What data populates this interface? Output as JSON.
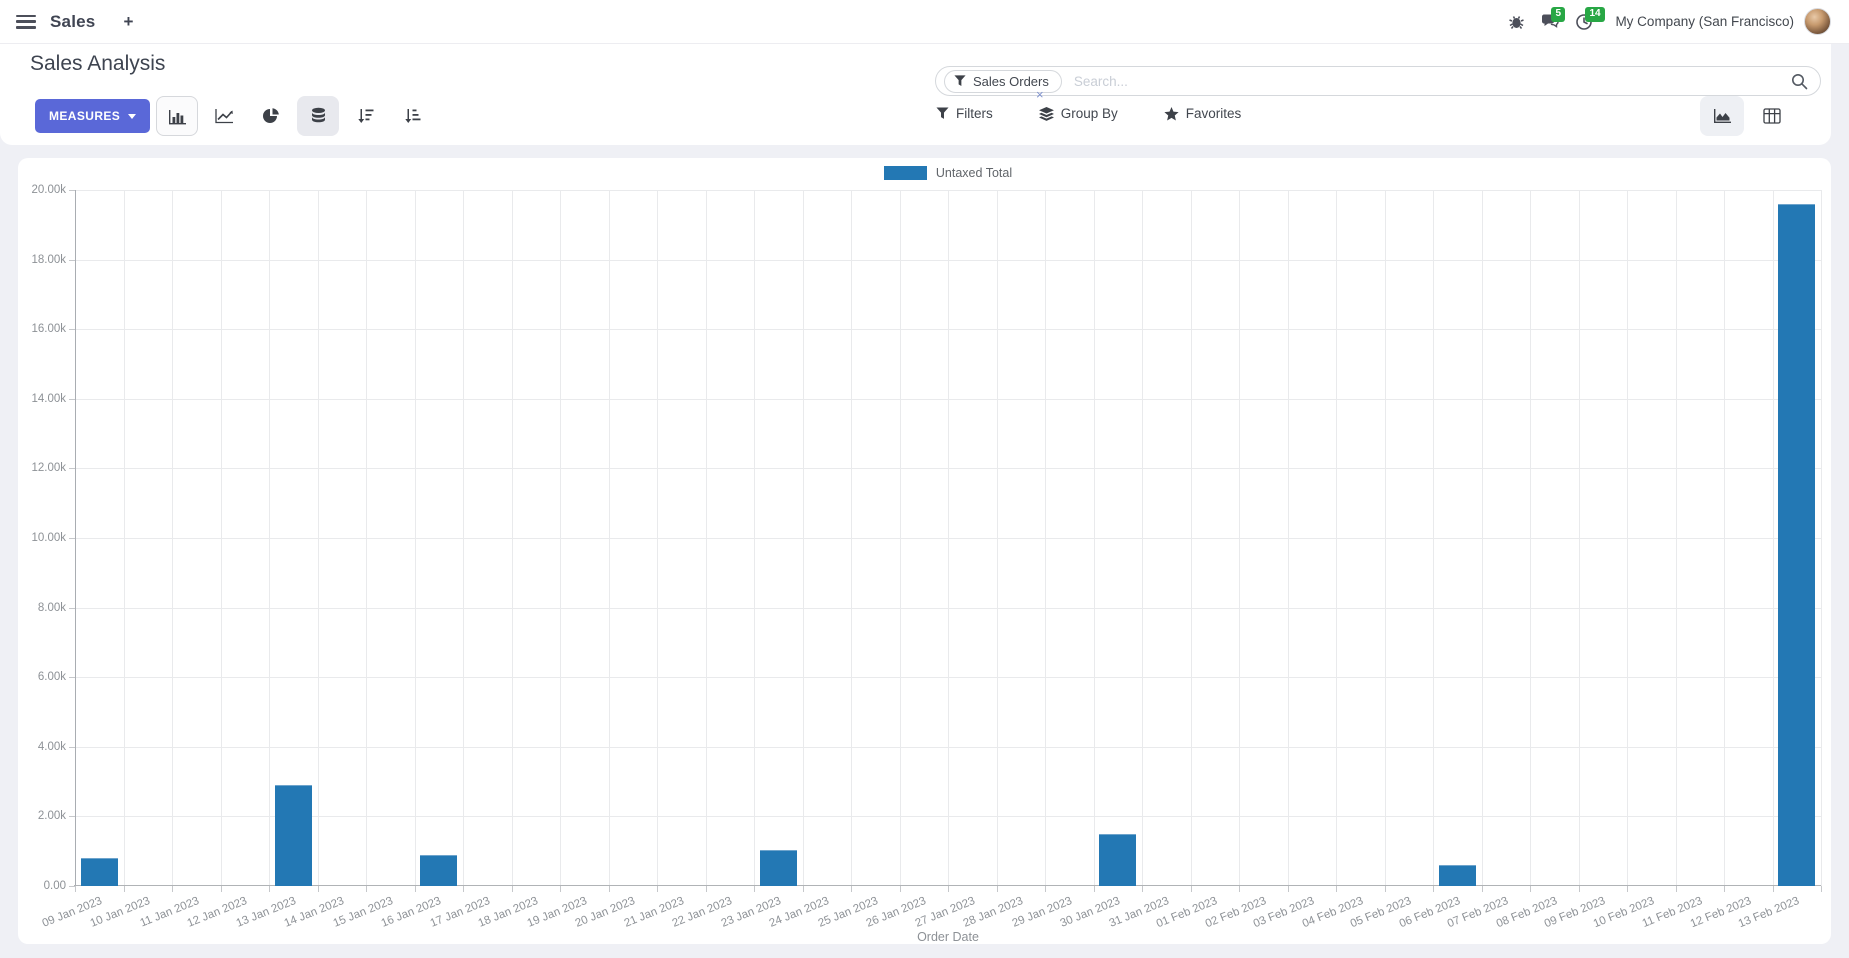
{
  "topbar": {
    "app_name": "Sales",
    "plus_label": "+",
    "chat_badge": "5",
    "activity_badge": "14",
    "company": "My Company (San Francisco)"
  },
  "control_panel": {
    "title": "Sales Analysis",
    "measures_label": "MEASURES",
    "search": {
      "facet_label": "Sales Orders",
      "facet_remove": "×",
      "placeholder": "Search..."
    },
    "filters_label": "Filters",
    "group_by_label": "Group By",
    "favorites_label": "Favorites"
  },
  "icons": {
    "menu-icon": "hamburger",
    "plus-icon": "+",
    "bug-icon": "debug bug",
    "chat-icon": "speech bubbles",
    "clock-icon": "activity clock",
    "bar-chart-icon": "bar chart (selected)",
    "line-chart-icon": "line chart",
    "pie-chart-icon": "pie chart",
    "stacked-icon": "database/stacked toggle (active)",
    "sort-desc-icon": "sort descending",
    "sort-asc-icon": "sort ascending",
    "filter-icon": "funnel",
    "group-by-icon": "layers",
    "favorites-icon": "star",
    "search-icon": "magnifier",
    "graph-view-icon": "area chart (active view)",
    "pivot-view-icon": "pivot grid"
  },
  "chart_data": {
    "type": "bar",
    "title": "",
    "legend_position": "top",
    "grid": true,
    "xlabel": "Order Date",
    "ylabel": "",
    "ylim": [
      0,
      20000
    ],
    "ytick_step": 2000,
    "ytick_labels": [
      "0.00",
      "2.00k",
      "4.00k",
      "6.00k",
      "8.00k",
      "10.00k",
      "12.00k",
      "14.00k",
      "16.00k",
      "18.00k",
      "20.00k"
    ],
    "categories": [
      "09 Jan 2023",
      "10 Jan 2023",
      "11 Jan 2023",
      "12 Jan 2023",
      "13 Jan 2023",
      "14 Jan 2023",
      "15 Jan 2023",
      "16 Jan 2023",
      "17 Jan 2023",
      "18 Jan 2023",
      "19 Jan 2023",
      "20 Jan 2023",
      "21 Jan 2023",
      "22 Jan 2023",
      "23 Jan 2023",
      "24 Jan 2023",
      "25 Jan 2023",
      "26 Jan 2023",
      "27 Jan 2023",
      "28 Jan 2023",
      "29 Jan 2023",
      "30 Jan 2023",
      "31 Jan 2023",
      "01 Feb 2023",
      "02 Feb 2023",
      "03 Feb 2023",
      "04 Feb 2023",
      "05 Feb 2023",
      "06 Feb 2023",
      "07 Feb 2023",
      "08 Feb 2023",
      "09 Feb 2023",
      "10 Feb 2023",
      "11 Feb 2023",
      "12 Feb 2023",
      "13 Feb 2023"
    ],
    "series": [
      {
        "name": "Untaxed Total",
        "color": "#2378b4",
        "values": [
          800,
          0,
          0,
          0,
          2900,
          0,
          0,
          890,
          0,
          0,
          0,
          0,
          0,
          0,
          1050,
          0,
          0,
          0,
          0,
          0,
          0,
          1500,
          0,
          0,
          0,
          0,
          0,
          0,
          600,
          0,
          0,
          0,
          0,
          0,
          0,
          19600
        ]
      }
    ]
  }
}
